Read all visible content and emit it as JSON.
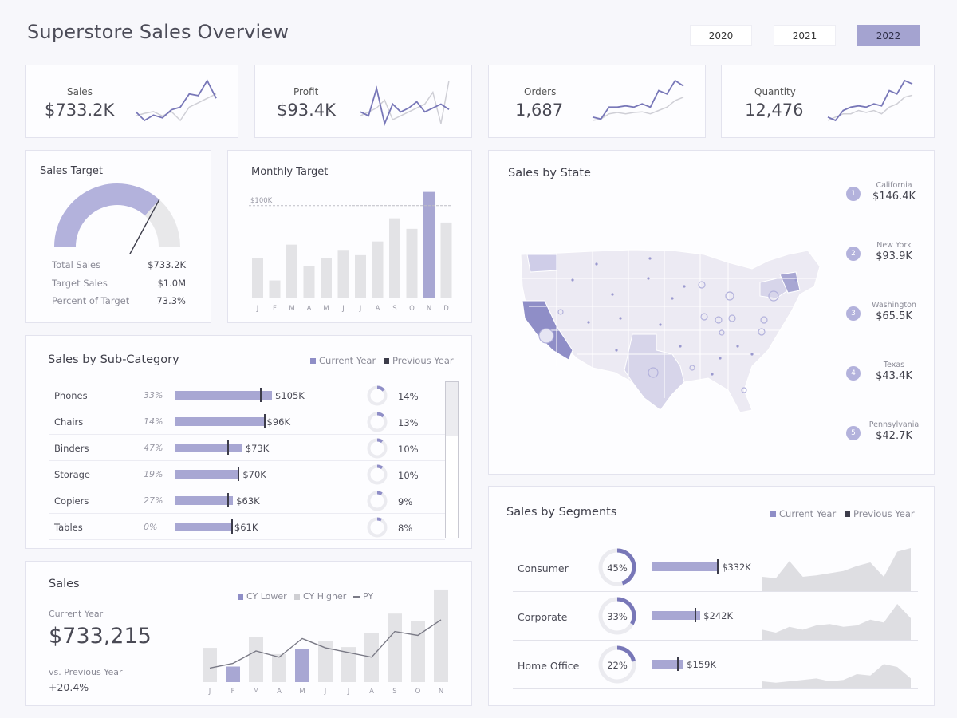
{
  "title": "Superstore Sales Overview",
  "years": [
    {
      "label": "2020",
      "selected": false
    },
    {
      "label": "2021",
      "selected": false
    },
    {
      "label": "2022",
      "selected": true
    }
  ],
  "colors": {
    "accent": "#8f8ec7",
    "accent_light": "#a8a7d3",
    "grey": "#e3e3e6",
    "dark": "#3c3c4a"
  },
  "kpis": [
    {
      "label": "Sales",
      "value": "$733.2K",
      "spark_cy": [
        40,
        30,
        36,
        33,
        42,
        45,
        60,
        58,
        75,
        55
      ],
      "spark_py": [
        35,
        38,
        40,
        35,
        40,
        30,
        45,
        50,
        55,
        60
      ]
    },
    {
      "label": "Profit",
      "value": "$93.4K",
      "spark_cy": [
        45,
        40,
        75,
        30,
        55,
        45,
        50,
        58,
        45,
        50,
        55,
        48
      ],
      "spark_py": [
        40,
        45,
        50,
        60,
        35,
        40,
        45,
        50,
        55,
        70,
        30,
        85
      ]
    },
    {
      "label": "Orders",
      "value": "1,687",
      "spark_cy": [
        25,
        22,
        40,
        40,
        42,
        40,
        45,
        40,
        65,
        60,
        80,
        72
      ],
      "spark_py": [
        20,
        22,
        30,
        32,
        30,
        32,
        33,
        30,
        35,
        40,
        50,
        55
      ]
    },
    {
      "label": "Quantity",
      "value": "12,476",
      "spark_cy": [
        25,
        20,
        35,
        40,
        42,
        40,
        45,
        42,
        65,
        60,
        80,
        75
      ],
      "spark_py": [
        20,
        25,
        30,
        30,
        35,
        32,
        35,
        30,
        40,
        45,
        55,
        58
      ]
    }
  ],
  "sales_target": {
    "title": "Sales Target",
    "rows": [
      {
        "label": "Total Sales",
        "value": "$733.2K"
      },
      {
        "label": "Target Sales",
        "value": "$1.0M"
      },
      {
        "label": "Percent of Target",
        "value": "73.3%"
      }
    ],
    "percent": 73.3
  },
  "monthly_target": {
    "title": "Monthly Target",
    "target_label": "$100K",
    "chart_data": {
      "type": "bar",
      "categories": [
        "J",
        "F",
        "M",
        "A",
        "M",
        "J",
        "J",
        "A",
        "S",
        "O",
        "N",
        "D"
      ],
      "values": [
        38,
        17,
        51,
        31,
        38,
        46,
        41,
        54,
        76,
        66,
        101,
        72
      ],
      "target": 88,
      "highlight_index": 10,
      "ylim": [
        0,
        106
      ]
    }
  },
  "sub_category": {
    "title": "Sales by Sub-Category",
    "legend_cy": "Current Year",
    "legend_py": "Previous Year",
    "rows": [
      {
        "name": "Phones",
        "pct": "33%",
        "value": "$105K",
        "amount": 105,
        "py": 92,
        "share": "14%",
        "share_num": 14
      },
      {
        "name": "Chairs",
        "pct": "14%",
        "value": "$96K",
        "amount": 96,
        "py": 96,
        "share": "13%",
        "share_num": 13
      },
      {
        "name": "Binders",
        "pct": "47%",
        "value": "$73K",
        "amount": 73,
        "py": 57,
        "share": "10%",
        "share_num": 10
      },
      {
        "name": "Storage",
        "pct": "19%",
        "value": "$70K",
        "amount": 70,
        "py": 68,
        "share": "10%",
        "share_num": 10
      },
      {
        "name": "Copiers",
        "pct": "27%",
        "value": "$63K",
        "amount": 63,
        "py": 57,
        "share": "9%",
        "share_num": 9
      },
      {
        "name": "Tables",
        "pct": "0%",
        "value": "$61K",
        "amount": 61,
        "py": 61,
        "share": "8%",
        "share_num": 8
      }
    ]
  },
  "sales": {
    "title": "Sales",
    "current_label": "Current Year",
    "current_value": "$733,215",
    "vs_label": "vs. Previous Year",
    "vs_value": "+20.4%",
    "legend": [
      "CY Lower",
      "CY Higher",
      "PY"
    ],
    "chart_data": {
      "type": "bar",
      "categories": [
        "J",
        "F",
        "M",
        "A",
        "M",
        "J",
        "J",
        "A",
        "S",
        "O",
        "N"
      ],
      "cy": [
        44,
        20,
        58,
        36,
        43,
        53,
        45,
        63,
        88,
        78,
        119
      ],
      "py": [
        18,
        24,
        40,
        32,
        56,
        44,
        38,
        32,
        65,
        60,
        80
      ],
      "ylim": [
        0,
        122
      ]
    }
  },
  "states": {
    "title": "Sales by State",
    "top": [
      {
        "rank": "1",
        "name": "California",
        "value": "$146.4K"
      },
      {
        "rank": "2",
        "name": "New York",
        "value": "$93.9K"
      },
      {
        "rank": "3",
        "name": "Washington",
        "value": "$65.5K"
      },
      {
        "rank": "4",
        "name": "Texas",
        "value": "$43.4K"
      },
      {
        "rank": "5",
        "name": "Pennsylvania",
        "value": "$42.7K"
      }
    ]
  },
  "segments": {
    "title": "Sales by Segments",
    "legend_cy": "Current Year",
    "legend_py": "Previous Year",
    "rows": [
      {
        "name": "Consumer",
        "pct": "45%",
        "pct_num": 45,
        "value": "$332K",
        "amount": 332,
        "py": 325,
        "area": [
          20,
          18,
          42,
          20,
          22,
          25,
          28,
          35,
          40,
          20,
          55,
          60
        ]
      },
      {
        "name": "Corporate",
        "pct": "33%",
        "pct_num": 33,
        "value": "$242K",
        "amount": 242,
        "py": 215,
        "area": [
          14,
          10,
          18,
          14,
          20,
          22,
          18,
          20,
          28,
          24,
          50,
          30
        ]
      },
      {
        "name": "Home Office",
        "pct": "22%",
        "pct_num": 22,
        "value": "$159K",
        "amount": 159,
        "py": 128,
        "area": [
          10,
          8,
          10,
          12,
          14,
          10,
          12,
          20,
          18,
          34,
          30,
          14
        ]
      }
    ]
  }
}
